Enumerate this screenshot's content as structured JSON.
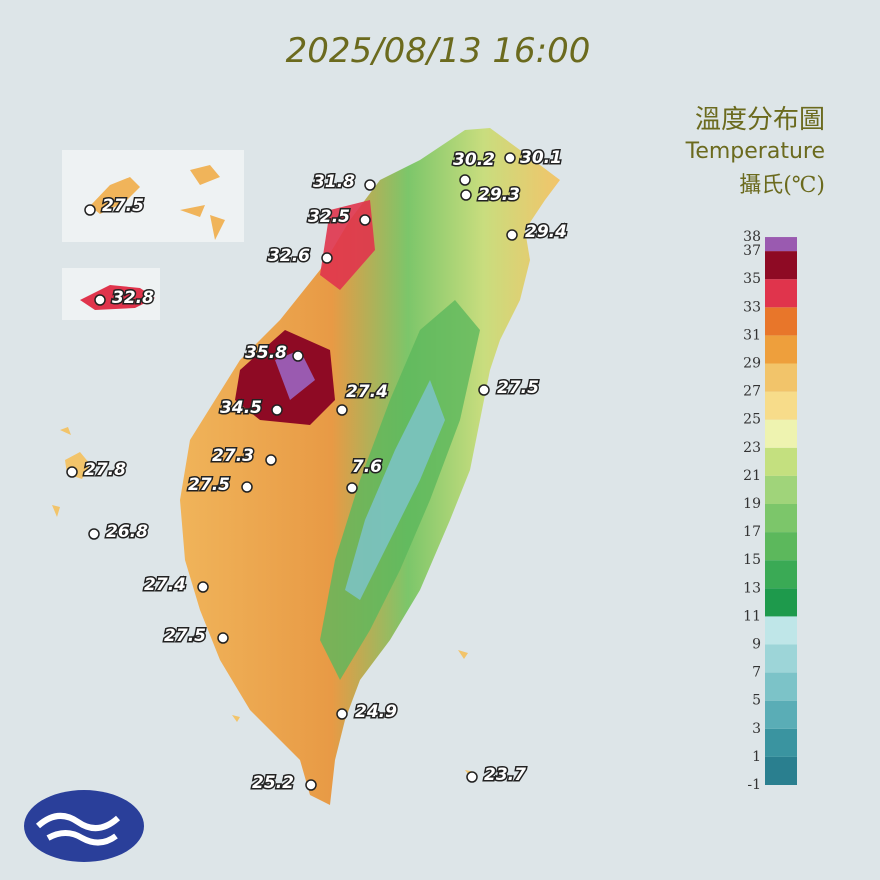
{
  "header": {
    "timestamp": "2025/08/13 16:00",
    "title_zh": "溫度分布圖",
    "title_en": "Temperature",
    "unit": "攝氏(℃)"
  },
  "stations": [
    30.1,
    30.2,
    29.3,
    31.8,
    32.5,
    29.4,
    32.6,
    32.8,
    27.5,
    35.8,
    27.4,
    27.5,
    34.5,
    27.3,
    27.8,
    7.6,
    27.5,
    26.8,
    27.4,
    27.5,
    24.9,
    23.7,
    25.2
  ],
  "legend": {
    "ticks": [
      38,
      37,
      35,
      33,
      31,
      29,
      27,
      25,
      23,
      21,
      19,
      17,
      15,
      13,
      11,
      9,
      7,
      5,
      3,
      1,
      -1
    ],
    "bands": [
      {
        "from": -1,
        "to": 1,
        "color": "#2a7f8f"
      },
      {
        "from": 1,
        "to": 3,
        "color": "#3a94a0"
      },
      {
        "from": 3,
        "to": 5,
        "color": "#5aadb6"
      },
      {
        "from": 5,
        "to": 7,
        "color": "#7cc3c8"
      },
      {
        "from": 7,
        "to": 9,
        "color": "#9dd5d8"
      },
      {
        "from": 9,
        "to": 11,
        "color": "#bfe6e8"
      },
      {
        "from": 11,
        "to": 13,
        "color": "#1e9a4c"
      },
      {
        "from": 13,
        "to": 15,
        "color": "#3aaa55"
      },
      {
        "from": 15,
        "to": 17,
        "color": "#5cb85c"
      },
      {
        "from": 17,
        "to": 19,
        "color": "#7cc66a"
      },
      {
        "from": 19,
        "to": 21,
        "color": "#a0d47a"
      },
      {
        "from": 21,
        "to": 23,
        "color": "#c4e07f"
      },
      {
        "from": 23,
        "to": 25,
        "color": "#eef3b0"
      },
      {
        "from": 25,
        "to": 27,
        "color": "#f7dc8a"
      },
      {
        "from": 27,
        "to": 29,
        "color": "#f2c46a"
      },
      {
        "from": 29,
        "to": 31,
        "color": "#ee9f3c"
      },
      {
        "from": 31,
        "to": 33,
        "color": "#e8762a"
      },
      {
        "from": 33,
        "to": 35,
        "color": "#e0344c"
      },
      {
        "from": 35,
        "to": 37,
        "color": "#8e0a24"
      },
      {
        "from": 37,
        "to": 38,
        "color": "#9a5ab0"
      }
    ]
  }
}
